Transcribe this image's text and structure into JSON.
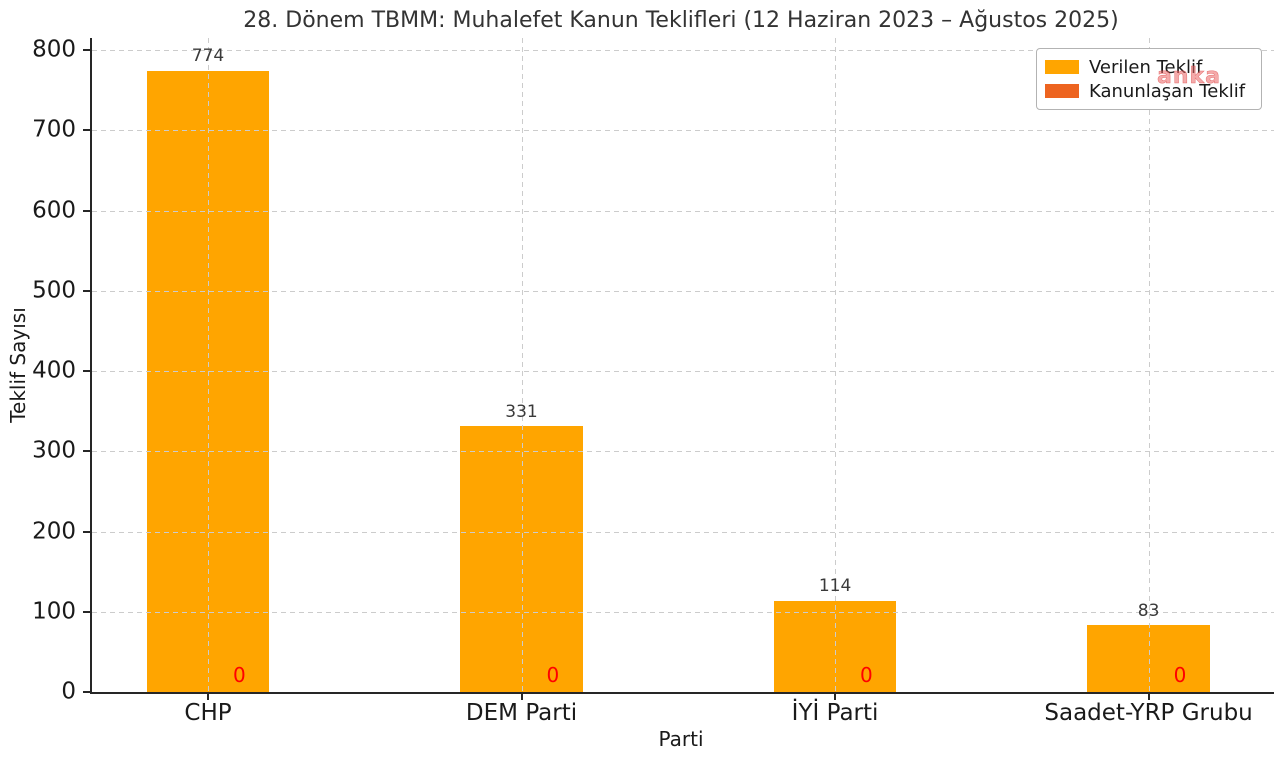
{
  "watermark": {
    "text": "anka",
    "color": "#eb6464"
  },
  "chart_data": {
    "type": "bar",
    "title": "28. Dönem TBMM: Muhalefet Kanun Teklifleri (12 Haziran 2023 – Ağustos 2025)",
    "xlabel": "Parti",
    "ylabel": "Teklif Sayısı",
    "categories": [
      "CHP",
      "DEM Parti",
      "İYİ Parti",
      "Saadet-YRP Grubu"
    ],
    "series": [
      {
        "name": "Verilen Teklif",
        "color": "#FFA500",
        "values": [
          774,
          331,
          114,
          83
        ],
        "label_color": "#3a3a3a"
      },
      {
        "name": "Kanunlaşan Teklif",
        "color": "#ED6420",
        "values": [
          0,
          0,
          0,
          0
        ],
        "label_color": "#FF0000"
      }
    ],
    "yticks": [
      0,
      100,
      200,
      300,
      400,
      500,
      600,
      700,
      800
    ],
    "xlim": [
      -0.37,
      3.4
    ],
    "ylim": [
      0,
      815
    ],
    "bar_width_units": 0.39,
    "zero_label_offset_units": 0.1,
    "grid": true,
    "grid_style": "dashed",
    "grid_above_bars": true,
    "legend_position": "upper right",
    "background": "#ffffff"
  }
}
